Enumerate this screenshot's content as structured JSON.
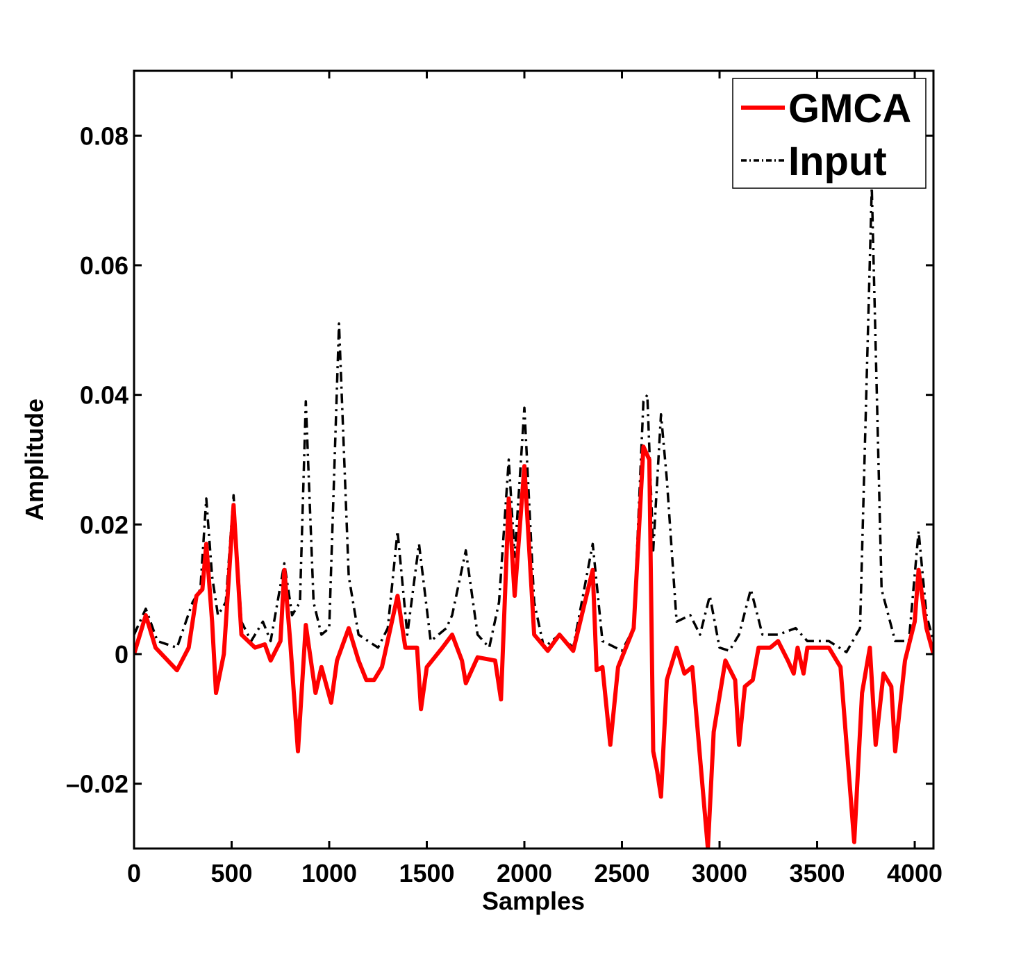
{
  "chart_data": {
    "type": "line",
    "xlabel": "Samples",
    "ylabel": "Amplitude",
    "xlim": [
      0,
      4096
    ],
    "ylim": [
      -0.03,
      0.09
    ],
    "xticks": [
      0,
      500,
      1000,
      1500,
      2000,
      2500,
      3000,
      3500,
      4000
    ],
    "yticks": [
      {
        "value": -0.02,
        "label": "–0.02"
      },
      0,
      0.02,
      0.04,
      0.06,
      0.08
    ],
    "legend": "upper right",
    "grid": false,
    "series": [
      {
        "name": "GMCA",
        "color": "#ff0000",
        "style": "solid",
        "x": [
          0,
          60,
          110,
          220,
          280,
          320,
          350,
          370,
          400,
          420,
          460,
          510,
          550,
          620,
          670,
          700,
          750,
          770,
          800,
          840,
          880,
          930,
          960,
          1010,
          1040,
          1100,
          1150,
          1190,
          1230,
          1270,
          1350,
          1390,
          1450,
          1470,
          1500,
          1580,
          1630,
          1680,
          1700,
          1760,
          1850,
          1880,
          1920,
          1950,
          2000,
          2050,
          2120,
          2180,
          2250,
          2350,
          2370,
          2400,
          2440,
          2480,
          2560,
          2610,
          2640,
          2660,
          2680,
          2700,
          2730,
          2780,
          2820,
          2860,
          2940,
          2970,
          3030,
          3080,
          3100,
          3130,
          3170,
          3200,
          3260,
          3300,
          3350,
          3380,
          3400,
          3430,
          3450,
          3560,
          3620,
          3690,
          3730,
          3770,
          3800,
          3840,
          3880,
          3900,
          3950,
          4000,
          4020,
          4060,
          4096
        ],
        "values": [
          0,
          0.006,
          0.001,
          -0.0025,
          0.001,
          0.009,
          0.01,
          0.017,
          0.005,
          -0.006,
          0,
          0.023,
          0.003,
          0.001,
          0.0015,
          -0.001,
          0.002,
          0.013,
          0.002,
          -0.015,
          0.0045,
          -0.006,
          -0.002,
          -0.0075,
          -0.001,
          0.004,
          -0.001,
          -0.004,
          -0.004,
          -0.002,
          0.009,
          0.001,
          0.001,
          -0.0085,
          -0.002,
          0.001,
          0.003,
          -0.001,
          -0.0045,
          -0.0005,
          -0.001,
          -0.007,
          0.024,
          0.009,
          0.029,
          0.003,
          0.0005,
          0.003,
          0.0005,
          0.013,
          -0.0025,
          -0.002,
          -0.014,
          -0.002,
          0.004,
          0.032,
          0.03,
          -0.015,
          -0.018,
          -0.022,
          -0.004,
          0.001,
          -0.003,
          -0.002,
          -0.03,
          -0.012,
          -0.001,
          -0.004,
          -0.014,
          -0.005,
          -0.004,
          0.001,
          0.001,
          0.002,
          -0.001,
          -0.003,
          0.001,
          -0.003,
          0.001,
          0.001,
          -0.002,
          -0.029,
          -0.006,
          0.001,
          -0.014,
          -0.003,
          -0.005,
          -0.015,
          -0.001,
          0.005,
          0.013,
          0.004,
          0
        ]
      },
      {
        "name": "Input",
        "color": "#000000",
        "style": "dashdot",
        "x": [
          0,
          60,
          120,
          220,
          300,
          340,
          370,
          400,
          430,
          470,
          510,
          550,
          600,
          660,
          700,
          770,
          810,
          850,
          880,
          920,
          960,
          1000,
          1050,
          1100,
          1150,
          1250,
          1300,
          1350,
          1400,
          1460,
          1520,
          1600,
          1630,
          1700,
          1760,
          1820,
          1870,
          1920,
          1950,
          2000,
          2050,
          2100,
          2180,
          2250,
          2350,
          2400,
          2500,
          2560,
          2610,
          2630,
          2660,
          2700,
          2730,
          2780,
          2850,
          2900,
          2950,
          3000,
          3050,
          3100,
          3160,
          3220,
          3300,
          3390,
          3450,
          3560,
          3650,
          3720,
          3780,
          3830,
          3900,
          3970,
          4020,
          4060,
          4096
        ],
        "values": [
          0.003,
          0.007,
          0.002,
          0.001,
          0.008,
          0.01,
          0.024,
          0.012,
          0.006,
          0.008,
          0.0245,
          0.005,
          0.002,
          0.005,
          0.002,
          0.014,
          0.006,
          0.008,
          0.039,
          0.008,
          0.003,
          0.004,
          0.051,
          0.012,
          0.003,
          0.001,
          0.004,
          0.019,
          0.003,
          0.017,
          0.002,
          0.004,
          0.006,
          0.016,
          0.003,
          0.001,
          0.008,
          0.03,
          0.015,
          0.038,
          0.008,
          0.001,
          0.003,
          0.001,
          0.017,
          0.002,
          0.0005,
          0.004,
          0.039,
          0.04,
          0.016,
          0.037,
          0.027,
          0.005,
          0.006,
          0.003,
          0.009,
          0.001,
          0.0005,
          0.003,
          0.01,
          0.003,
          0.003,
          0.004,
          0.002,
          0.002,
          0.0003,
          0.004,
          0.072,
          0.01,
          0.002,
          0.002,
          0.019,
          0.006,
          0.002
        ]
      }
    ]
  }
}
